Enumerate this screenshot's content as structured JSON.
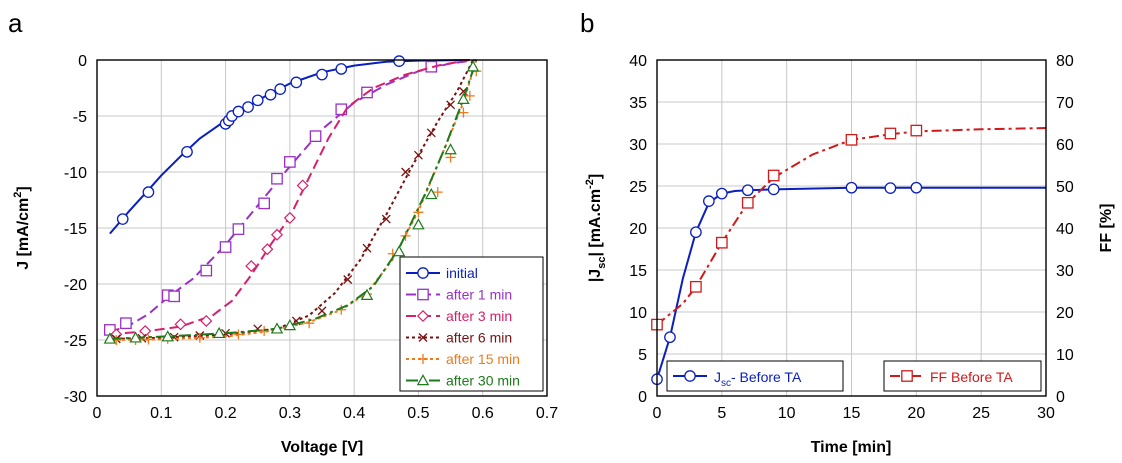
{
  "chart_data": [
    {
      "type": "line",
      "panel_label": "a",
      "xlabel": "Voltage [V]",
      "ylabel": "J [mA/cm2]",
      "ylabel_main": "J [mA/cm",
      "ylabel_sup": "2",
      "ylabel_end": "]",
      "xlim": [
        0,
        0.7
      ],
      "ylim": [
        -30,
        0
      ],
      "xticks": [
        "0",
        "0.1",
        "0.2",
        "0.3",
        "0.4",
        "0.5",
        "0.6",
        "0.7"
      ],
      "yticks": [
        "0",
        "-5",
        "-10",
        "-15",
        "-20",
        "-25",
        "-30"
      ],
      "grid": true,
      "legend_position": "bottom-right",
      "series": [
        {
          "name": "initial",
          "color": "#0a1fbf",
          "marker": "circle",
          "dash": "",
          "line": [
            [
              0.02,
              -15.5
            ],
            [
              0.05,
              -13.5
            ],
            [
              0.08,
              -11.6
            ],
            [
              0.1,
              -10.3
            ],
            [
              0.13,
              -8.6
            ],
            [
              0.16,
              -7.0
            ],
            [
              0.2,
              -5.4
            ],
            [
              0.25,
              -3.6
            ],
            [
              0.3,
              -2.1
            ],
            [
              0.35,
              -1.1
            ],
            [
              0.4,
              -0.5
            ],
            [
              0.45,
              -0.15
            ],
            [
              0.5,
              -0.05
            ],
            [
              0.58,
              0
            ]
          ],
          "points": [
            [
              0.04,
              -14.2
            ],
            [
              0.08,
              -11.8
            ],
            [
              0.14,
              -8.2
            ],
            [
              0.2,
              -5.7
            ],
            [
              0.205,
              -5.4
            ],
            [
              0.21,
              -5.0
            ],
            [
              0.22,
              -4.6
            ],
            [
              0.235,
              -4.2
            ],
            [
              0.25,
              -3.6
            ],
            [
              0.27,
              -3.1
            ],
            [
              0.285,
              -2.6
            ],
            [
              0.31,
              -2.0
            ],
            [
              0.35,
              -1.3
            ],
            [
              0.38,
              -0.8
            ],
            [
              0.47,
              -0.1
            ]
          ]
        },
        {
          "name": "after 1 min",
          "color": "#9b30c8",
          "marker": "square",
          "dash": "10,5",
          "line": [
            [
              0.02,
              -24.3
            ],
            [
              0.05,
              -23.7
            ],
            [
              0.08,
              -22.7
            ],
            [
              0.11,
              -21.2
            ],
            [
              0.15,
              -19.5
            ],
            [
              0.2,
              -16.5
            ],
            [
              0.25,
              -13.0
            ],
            [
              0.3,
              -9.5
            ],
            [
              0.35,
              -6.2
            ],
            [
              0.4,
              -3.8
            ],
            [
              0.45,
              -2.2
            ],
            [
              0.5,
              -1.0
            ],
            [
              0.55,
              -0.3
            ],
            [
              0.59,
              0
            ]
          ],
          "points": [
            [
              0.02,
              -24.1
            ],
            [
              0.045,
              -23.5
            ],
            [
              0.11,
              -21.0
            ],
            [
              0.12,
              -21.1
            ],
            [
              0.17,
              -18.8
            ],
            [
              0.2,
              -16.7
            ],
            [
              0.22,
              -15.1
            ],
            [
              0.26,
              -12.8
            ],
            [
              0.28,
              -10.6
            ],
            [
              0.3,
              -9.1
            ],
            [
              0.34,
              -6.8
            ],
            [
              0.38,
              -4.4
            ],
            [
              0.42,
              -2.9
            ],
            [
              0.52,
              -0.6
            ]
          ]
        },
        {
          "name": "after 3 min",
          "color": "#d6206e",
          "marker": "diamond",
          "dash": "10,5",
          "line": [
            [
              0.02,
              -24.5
            ],
            [
              0.08,
              -24.2
            ],
            [
              0.13,
              -23.8
            ],
            [
              0.18,
              -22.8
            ],
            [
              0.21,
              -21.5
            ],
            [
              0.24,
              -19.2
            ],
            [
              0.27,
              -16.5
            ],
            [
              0.3,
              -14.0
            ],
            [
              0.33,
              -10.5
            ],
            [
              0.36,
              -7.0
            ],
            [
              0.39,
              -4.2
            ],
            [
              0.43,
              -2.5
            ],
            [
              0.48,
              -1.3
            ],
            [
              0.53,
              -0.5
            ],
            [
              0.58,
              0
            ]
          ],
          "points": [
            [
              0.03,
              -24.5
            ],
            [
              0.075,
              -24.2
            ],
            [
              0.13,
              -23.6
            ],
            [
              0.17,
              -23.3
            ],
            [
              0.24,
              -18.4
            ],
            [
              0.265,
              -16.9
            ],
            [
              0.28,
              -15.6
            ],
            [
              0.3,
              -14.1
            ],
            [
              0.32,
              -11.2
            ]
          ]
        },
        {
          "name": "after 6 min",
          "color": "#7a1010",
          "marker": "x",
          "dash": "3,3",
          "line": [
            [
              0.02,
              -24.9
            ],
            [
              0.1,
              -24.8
            ],
            [
              0.2,
              -24.5
            ],
            [
              0.28,
              -24.0
            ],
            [
              0.33,
              -22.8
            ],
            [
              0.37,
              -20.8
            ],
            [
              0.41,
              -17.8
            ],
            [
              0.45,
              -13.8
            ],
            [
              0.49,
              -9.5
            ],
            [
              0.53,
              -5.5
            ],
            [
              0.56,
              -2.8
            ],
            [
              0.585,
              0
            ]
          ],
          "points": [
            [
              0.03,
              -24.9
            ],
            [
              0.07,
              -24.85
            ],
            [
              0.12,
              -24.75
            ],
            [
              0.16,
              -24.6
            ],
            [
              0.2,
              -24.4
            ],
            [
              0.25,
              -24.0
            ],
            [
              0.31,
              -23.3
            ],
            [
              0.35,
              -22.4
            ],
            [
              0.39,
              -19.6
            ],
            [
              0.42,
              -16.8
            ],
            [
              0.45,
              -14.2
            ],
            [
              0.48,
              -10.0
            ],
            [
              0.5,
              -8.5
            ],
            [
              0.52,
              -6.5
            ],
            [
              0.55,
              -4.0
            ],
            [
              0.57,
              -2.8
            ]
          ]
        },
        {
          "name": "after 15 min",
          "color": "#f07a1a",
          "marker": "plus",
          "dash": "3,3",
          "line": [
            [
              0.02,
              -25.0
            ],
            [
              0.1,
              -24.95
            ],
            [
              0.2,
              -24.7
            ],
            [
              0.27,
              -24.2
            ],
            [
              0.33,
              -23.4
            ],
            [
              0.38,
              -22.3
            ],
            [
              0.42,
              -20.8
            ],
            [
              0.46,
              -17.8
            ],
            [
              0.5,
              -13.5
            ],
            [
              0.54,
              -8.0
            ],
            [
              0.57,
              -3.8
            ],
            [
              0.59,
              0
            ]
          ],
          "points": [
            [
              0.03,
              -25.0
            ],
            [
              0.06,
              -25.0
            ],
            [
              0.08,
              -24.95
            ],
            [
              0.11,
              -24.9
            ],
            [
              0.16,
              -24.8
            ],
            [
              0.22,
              -24.5
            ],
            [
              0.26,
              -24.2
            ],
            [
              0.33,
              -23.5
            ],
            [
              0.38,
              -22.3
            ],
            [
              0.42,
              -20.9
            ],
            [
              0.46,
              -17.3
            ],
            [
              0.48,
              -15.7
            ],
            [
              0.5,
              -13.6
            ],
            [
              0.53,
              -11.8
            ],
            [
              0.55,
              -8.7
            ],
            [
              0.57,
              -4.7
            ],
            [
              0.58,
              -3.2
            ],
            [
              0.59,
              -1.0
            ]
          ]
        },
        {
          "name": "after 30 min",
          "color": "#1b7a1b",
          "marker": "triangle",
          "dash": "12,4,3,4",
          "line": [
            [
              0.02,
              -24.9
            ],
            [
              0.1,
              -24.7
            ],
            [
              0.2,
              -24.4
            ],
            [
              0.28,
              -24.0
            ],
            [
              0.34,
              -23.1
            ],
            [
              0.39,
              -21.9
            ],
            [
              0.43,
              -20.2
            ],
            [
              0.47,
              -16.8
            ],
            [
              0.51,
              -12.0
            ],
            [
              0.54,
              -8.0
            ],
            [
              0.57,
              -3.5
            ],
            [
              0.59,
              0
            ]
          ],
          "points": [
            [
              0.02,
              -24.9
            ],
            [
              0.06,
              -24.8
            ],
            [
              0.11,
              -24.7
            ],
            [
              0.19,
              -24.4
            ],
            [
              0.28,
              -24.0
            ],
            [
              0.3,
              -23.7
            ],
            [
              0.42,
              -21.0
            ],
            [
              0.47,
              -17.1
            ],
            [
              0.5,
              -14.7
            ],
            [
              0.52,
              -12.0
            ],
            [
              0.55,
              -8.0
            ],
            [
              0.57,
              -3.5
            ],
            [
              0.585,
              -0.6
            ]
          ]
        }
      ]
    },
    {
      "type": "line",
      "panel_label": "b",
      "xlabel": "Time [min]",
      "ylabel": "|Jsc| [mA.cm-2]",
      "ylabel_left_a": "|J",
      "ylabel_left_sub": "sc",
      "ylabel_left_b": "| [mA.cm",
      "ylabel_left_sup": "-2",
      "ylabel_left_c": "]",
      "ylabel_right": "FF [%]",
      "xlim": [
        0,
        30
      ],
      "ylim_left": [
        0,
        40
      ],
      "ylim_right": [
        0,
        80
      ],
      "xticks": [
        "0",
        "5",
        "10",
        "15",
        "20",
        "25",
        "30"
      ],
      "yticks_left": [
        "0",
        "5",
        "10",
        "15",
        "20",
        "25",
        "30",
        "35",
        "40"
      ],
      "yticks_right": [
        "0",
        "10",
        "20",
        "30",
        "40",
        "50",
        "60",
        "70",
        "80"
      ],
      "grid": true,
      "series": [
        {
          "name": "Jsc- Before TA",
          "name_a": "J",
          "name_sub": "sc",
          "name_b": "- Before TA",
          "axis": "left",
          "color": "#0a1fbf",
          "marker": "circle",
          "dash": "",
          "legend_position": "bottom-left",
          "line": [
            [
              0,
              2.0
            ],
            [
              1,
              7.0
            ],
            [
              2,
              14.0
            ],
            [
              3,
              19.5
            ],
            [
              4,
              23.0
            ],
            [
              5,
              24.1
            ],
            [
              6,
              24.4
            ],
            [
              7,
              24.5
            ],
            [
              9,
              24.6
            ],
            [
              15,
              24.8
            ],
            [
              20,
              24.8
            ],
            [
              30,
              24.8
            ]
          ],
          "points": [
            [
              0,
              2.0
            ],
            [
              1,
              7.0
            ],
            [
              3,
              19.5
            ],
            [
              4,
              23.2
            ],
            [
              5,
              24.1
            ],
            [
              7,
              24.5
            ],
            [
              9,
              24.6
            ],
            [
              15,
              24.8
            ],
            [
              18,
              24.75
            ],
            [
              20,
              24.8
            ]
          ]
        },
        {
          "name": "FF Before TA",
          "axis": "right",
          "color": "#d01a1a",
          "marker": "square",
          "dash": "10,4,3,4",
          "legend_position": "bottom-right",
          "line": [
            [
              0,
              17.0
            ],
            [
              2,
              22.0
            ],
            [
              3,
              26.0
            ],
            [
              5,
              36.5
            ],
            [
              7,
              46.0
            ],
            [
              9,
              52.0
            ],
            [
              12,
              57.5
            ],
            [
              15,
              61.0
            ],
            [
              18,
              62.3
            ],
            [
              20,
              63.0
            ],
            [
              25,
              63.5
            ],
            [
              30,
              63.8
            ]
          ],
          "points": [
            [
              0,
              17.0
            ],
            [
              3,
              26.0
            ],
            [
              5,
              36.5
            ],
            [
              7,
              46.0
            ],
            [
              9,
              52.5
            ],
            [
              15,
              61.0
            ],
            [
              18,
              62.5
            ],
            [
              20,
              63.2
            ]
          ]
        }
      ]
    }
  ]
}
